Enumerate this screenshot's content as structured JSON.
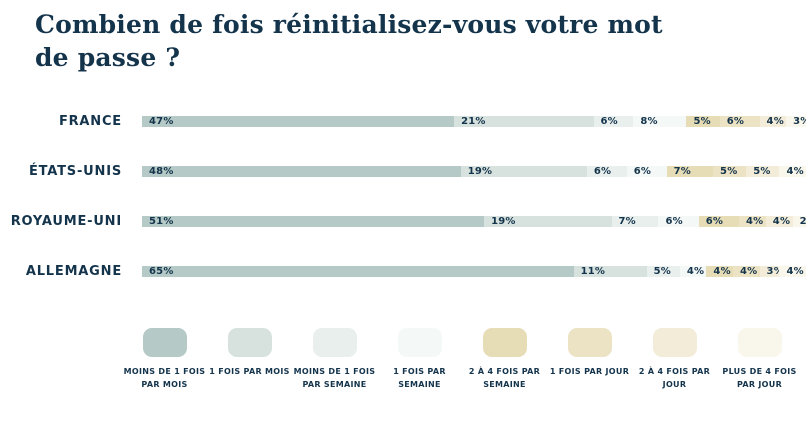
{
  "chart_data": {
    "type": "bar",
    "orientation": "horizontal",
    "stacked": true,
    "title": "Combien de fois réinitialisez-vous votre mot de passe ?",
    "categories": [
      "FRANCE",
      "ÉTATS-UNIS",
      "ROYAUME-UNI",
      "ALLEMAGNE"
    ],
    "value_suffix": "%",
    "xlim": [
      0,
      100
    ],
    "grid": false,
    "legend_position": "bottom",
    "series": [
      {
        "name": "MOINS DE 1 FOIS PAR MOIS",
        "color": "#B5CAC6",
        "values": [
          47,
          48,
          51,
          65
        ]
      },
      {
        "name": "1 FOIS PAR MOIS",
        "color": "#D7E2DF",
        "values": [
          21,
          19,
          19,
          11
        ]
      },
      {
        "name": "MOINS DE 1 FOIS PAR SEMAINE",
        "color": "#E8EFED",
        "values": [
          6,
          6,
          7,
          5
        ]
      },
      {
        "name": "1 FOIS PAR SEMAINE",
        "color": "#F4F8F7",
        "values": [
          8,
          6,
          6,
          4
        ]
      },
      {
        "name": "2 À 4 FOIS PAR SEMAINE",
        "color": "#E6DDB6",
        "values": [
          5,
          7,
          6,
          4
        ]
      },
      {
        "name": "1 FOIS PAR JOUR",
        "color": "#ECE3C4",
        "values": [
          6,
          5,
          4,
          4
        ]
      },
      {
        "name": "2 À 4 FOIS PAR JOUR",
        "color": "#F2ECD8",
        "values": [
          4,
          5,
          4,
          3
        ]
      },
      {
        "name": "PLUS DE 4 FOIS PAR JOUR",
        "color": "#F9F7EC",
        "values": [
          3,
          4,
          2,
          4
        ]
      }
    ],
    "text_color": "#14344C"
  }
}
